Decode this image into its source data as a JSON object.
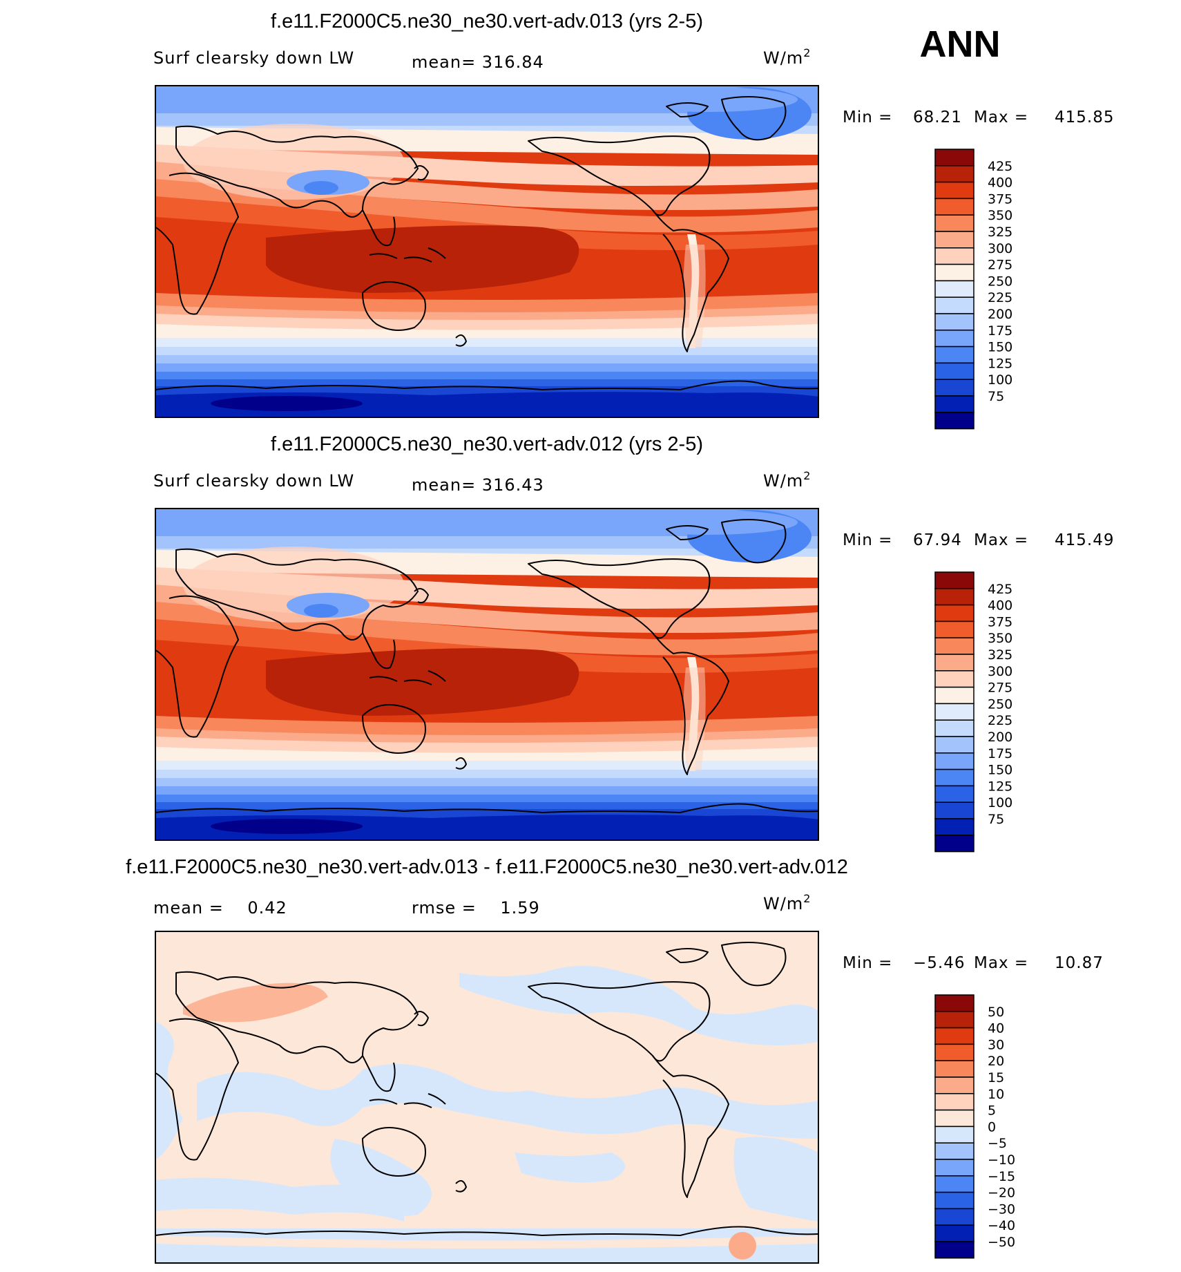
{
  "season": "ANN",
  "colors": {
    "abs": [
      "#01008a",
      "#0320b4",
      "#1a46d4",
      "#2b63e6",
      "#4c86f5",
      "#79a6fa",
      "#a3c3fd",
      "#c5dbfd",
      "#e0ecfc",
      "#fdf0e4",
      "#fed2bd",
      "#fcab8a",
      "#f8875c",
      "#f05c2c",
      "#e03a10",
      "#b82208",
      "#8b0808"
    ],
    "diff": [
      "#01008a",
      "#0320b4",
      "#1a46d4",
      "#2b63e6",
      "#4c86f5",
      "#79a6fa",
      "#a3c3fd",
      "#d6e7fc",
      "#fde7d9",
      "#fed2bd",
      "#fcab8a",
      "#f8875c",
      "#f05c2c",
      "#e03a10",
      "#b82208",
      "#8b0808"
    ]
  },
  "panels": [
    {
      "id": "case",
      "title": "f.e11.F2000C5.ne30_ne30.vert-adv.013 (yrs 2-5)",
      "left_label": "Surf clearsky down LW",
      "center_label": "mean= 316.84",
      "units": "W/m",
      "units_sup": "2",
      "min_label": "Min =",
      "min_value": "68.21",
      "max_label": "Max =",
      "max_value": "415.85",
      "levels": [
        "425",
        "400",
        "375",
        "350",
        "325",
        "300",
        "275",
        "250",
        "225",
        "200",
        "175",
        "150",
        "125",
        "100",
        "75"
      ],
      "palette": "abs"
    },
    {
      "id": "control",
      "title": "f.e11.F2000C5.ne30_ne30.vert-adv.012 (yrs 2-5)",
      "left_label": "Surf clearsky down LW",
      "center_label": "mean= 316.43",
      "units": "W/m",
      "units_sup": "2",
      "min_label": "Min =",
      "min_value": "67.94",
      "max_label": "Max =",
      "max_value": "415.49",
      "levels": [
        "425",
        "400",
        "375",
        "350",
        "325",
        "300",
        "275",
        "250",
        "225",
        "200",
        "175",
        "150",
        "125",
        "100",
        "75"
      ],
      "palette": "abs"
    },
    {
      "id": "difference",
      "title": "f.e11.F2000C5.ne30_ne30.vert-adv.013 - f.e11.F2000C5.ne30_ne30.vert-adv.012",
      "left_label": "mean =    0.42",
      "center_label": "rmse =    1.59",
      "units": "W/m",
      "units_sup": "2",
      "min_label": "Min =",
      "min_value": "−5.46",
      "max_label": "Max =",
      "max_value": "10.87",
      "levels": [
        "50",
        "40",
        "30",
        "20",
        "15",
        "10",
        "5",
        "0",
        "−5",
        "−10",
        "−15",
        "−20",
        "−30",
        "−40",
        "−50"
      ],
      "palette": "diff"
    }
  ]
}
